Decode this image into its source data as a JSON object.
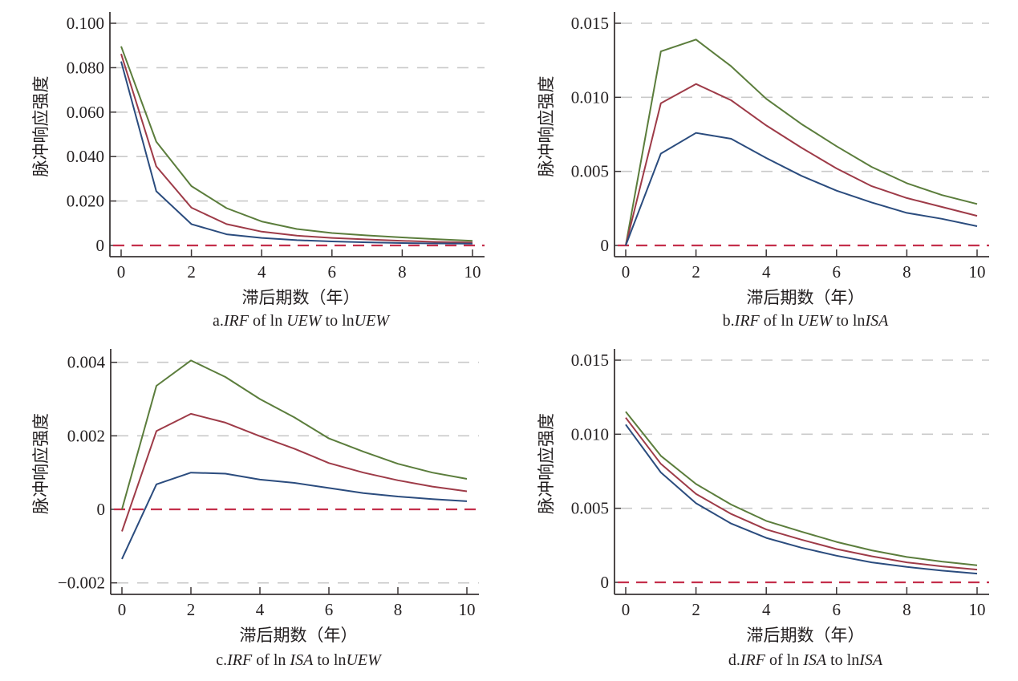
{
  "figure": {
    "colors": {
      "upper": "#5b7d3c",
      "irf": "#9e3b48",
      "lower": "#2b4c7e",
      "zero_line": "#c42f4b",
      "grid": "#c9c9c9",
      "axis": "#3a3536"
    }
  },
  "chart_data": [
    {
      "id": "a",
      "type": "line",
      "caption": {
        "prefix": "a.",
        "irf": "IRF",
        "of": " of ln ",
        "response": "UEW",
        "to": " to ln",
        "impulse": "UEW"
      },
      "xlabel": "滞后期数（年）",
      "ylabel": "脉冲响应强度",
      "x": [
        0,
        1,
        2,
        3,
        4,
        5,
        6,
        7,
        8,
        9,
        10
      ],
      "xticks": [
        0,
        2,
        4,
        6,
        8,
        10
      ],
      "xtick_labels": [
        "0",
        "2",
        "4",
        "6",
        "8",
        "10"
      ],
      "yticks": [
        0,
        0.02,
        0.04,
        0.06,
        0.08,
        0.1
      ],
      "ytick_labels": [
        "0",
        "0.020",
        "0.040",
        "0.060",
        "0.080",
        "0.100"
      ],
      "ylim": [
        -0.003,
        0.105
      ],
      "xlim": [
        -0.3,
        10.3
      ],
      "grid": "horizontal-dashed",
      "reference_line": 0,
      "series": [
        {
          "name": "upper",
          "values": [
            0.0896,
            0.0467,
            0.0267,
            0.0168,
            0.0108,
            0.0074,
            0.0056,
            0.0045,
            0.0036,
            0.0028,
            0.0021
          ]
        },
        {
          "name": "irf",
          "values": [
            0.0862,
            0.0356,
            0.017,
            0.0096,
            0.0062,
            0.0044,
            0.0034,
            0.0027,
            0.0021,
            0.0016,
            0.0013
          ]
        },
        {
          "name": "lower",
          "values": [
            0.0828,
            0.0244,
            0.0096,
            0.005,
            0.0034,
            0.0024,
            0.0018,
            0.0014,
            0.0011,
            0.0009,
            0.0008
          ]
        }
      ]
    },
    {
      "id": "b",
      "type": "line",
      "caption": {
        "prefix": "b.",
        "irf": "IRF",
        "of": " of ln ",
        "response": "UEW",
        "to": " to ln",
        "impulse": "ISA"
      },
      "xlabel": "滞后期数（年）",
      "ylabel": "脉冲响应强度",
      "x": [
        0,
        1,
        2,
        3,
        4,
        5,
        6,
        7,
        8,
        9,
        10
      ],
      "xticks": [
        0,
        2,
        4,
        6,
        8,
        10
      ],
      "xtick_labels": [
        "0",
        "2",
        "4",
        "6",
        "8",
        "10"
      ],
      "yticks": [
        0,
        0.005,
        0.01,
        0.015
      ],
      "ytick_labels": [
        "0",
        "0.005",
        "0.010",
        "0.015"
      ],
      "ylim": [
        -0.00076,
        0.01576
      ],
      "xlim": [
        -0.3,
        10.3
      ],
      "grid": "horizontal-dashed",
      "reference_line": 0,
      "series": [
        {
          "name": "upper",
          "values": [
            0,
            0.0131,
            0.0139,
            0.0121,
            0.0099,
            0.0082,
            0.0067,
            0.0053,
            0.0042,
            0.0034,
            0.0028
          ]
        },
        {
          "name": "irf",
          "values": [
            0,
            0.0096,
            0.0109,
            0.0098,
            0.0081,
            0.0066,
            0.0052,
            0.004,
            0.0032,
            0.0026,
            0.002
          ]
        },
        {
          "name": "lower",
          "values": [
            0,
            0.0062,
            0.0076,
            0.0072,
            0.0059,
            0.0047,
            0.0037,
            0.0029,
            0.0022,
            0.0018,
            0.0013
          ]
        }
      ]
    },
    {
      "id": "c",
      "type": "line",
      "caption": {
        "prefix": "c.",
        "irf": "IRF",
        "of": " of ln ",
        "response": "ISA",
        "to": " to ln",
        "impulse": "UEW"
      },
      "xlabel": "滞后期数（年）",
      "ylabel": "脉冲响应强度",
      "x": [
        0,
        1,
        2,
        3,
        4,
        5,
        6,
        7,
        8,
        9,
        10
      ],
      "xticks": [
        0,
        2,
        4,
        6,
        8,
        10
      ],
      "xtick_labels": [
        "0",
        "2",
        "4",
        "6",
        "8",
        "10"
      ],
      "yticks": [
        -0.002,
        0,
        0.002,
        0.004
      ],
      "ytick_labels": [
        "−0.002",
        "0",
        "0.002",
        "0.004"
      ],
      "ylim": [
        -0.00231,
        0.00427
      ],
      "xlim": [
        -0.3,
        10.3
      ],
      "grid": "horizontal-dashed",
      "reference_line": 0,
      "series": [
        {
          "name": "upper",
          "values": [
            0.0,
            0.00336,
            0.00405,
            0.0036,
            0.003,
            0.0025,
            0.00193,
            0.00157,
            0.00124,
            0.001,
            0.00083
          ]
        },
        {
          "name": "irf",
          "values": [
            -0.0006,
            0.00213,
            0.0026,
            0.00236,
            0.00199,
            0.00165,
            0.00126,
            0.001,
            0.00079,
            0.00062,
            0.00049
          ]
        },
        {
          "name": "lower",
          "values": [
            -0.00135,
            0.00068,
            0.001,
            0.00097,
            0.00081,
            0.00072,
            0.00058,
            0.00044,
            0.00035,
            0.00028,
            0.00022
          ]
        }
      ]
    },
    {
      "id": "d",
      "type": "line",
      "caption": {
        "prefix": "d.",
        "irf": "IRF",
        "of": " of ln ",
        "response": "ISA",
        "to": " to ln",
        "impulse": "ISA"
      },
      "xlabel": "滞后期数（年）",
      "ylabel": "脉冲响应强度",
      "x": [
        0,
        1,
        2,
        3,
        4,
        5,
        6,
        7,
        8,
        9,
        10
      ],
      "xticks": [
        0,
        2,
        4,
        6,
        8,
        10
      ],
      "xtick_labels": [
        "0",
        "2",
        "4",
        "6",
        "8",
        "10"
      ],
      "yticks": [
        0,
        0.005,
        0.01,
        0.015
      ],
      "ytick_labels": [
        "0",
        "0.005",
        "0.010",
        "0.015"
      ],
      "ylim": [
        -0.00076,
        0.01576
      ],
      "xlim": [
        -0.3,
        10.3
      ],
      "grid": "horizontal-dashed",
      "reference_line": 0,
      "series": [
        {
          "name": "upper",
          "values": [
            0.01152,
            0.00854,
            0.00664,
            0.00525,
            0.00415,
            0.00342,
            0.00273,
            0.00216,
            0.00171,
            0.0014,
            0.00115
          ]
        },
        {
          "name": "irf",
          "values": [
            0.01112,
            0.008,
            0.00597,
            0.00462,
            0.00357,
            0.00288,
            0.00225,
            0.00176,
            0.00135,
            0.00108,
            0.00086
          ]
        },
        {
          "name": "lower",
          "values": [
            0.01065,
            0.00742,
            0.00534,
            0.00397,
            0.003,
            0.00234,
            0.0018,
            0.00135,
            0.00104,
            0.00079,
            0.00059
          ]
        }
      ]
    }
  ]
}
